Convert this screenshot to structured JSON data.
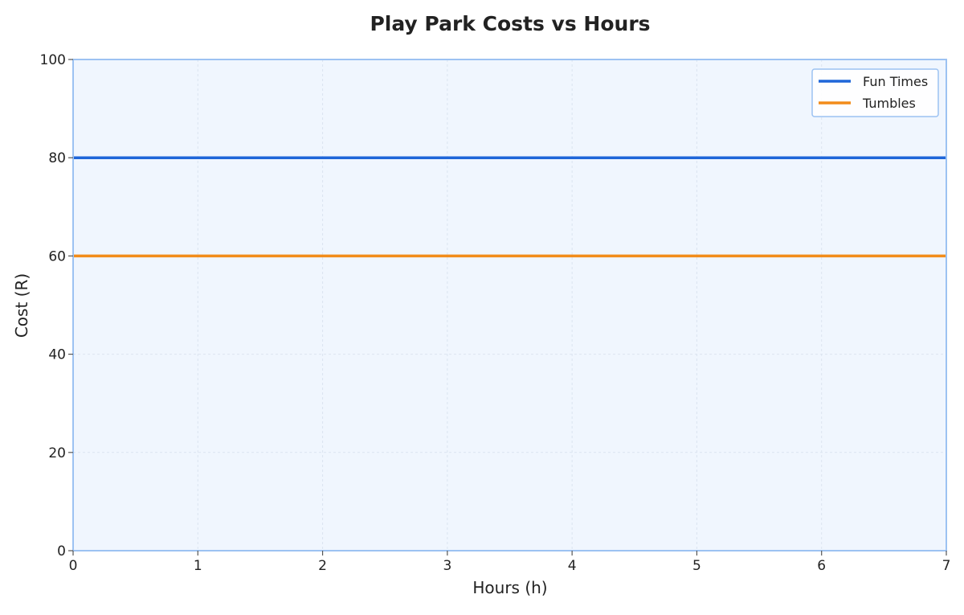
{
  "chart_data": {
    "type": "line",
    "title": "Play Park Costs vs Hours",
    "xlabel": "Hours (h)",
    "ylabel": "Cost (R)",
    "xlim": [
      0,
      7
    ],
    "ylim": [
      0,
      100
    ],
    "x_ticks": [
      0,
      1,
      2,
      3,
      4,
      5,
      6,
      7
    ],
    "y_ticks": [
      0,
      20,
      40,
      60,
      80,
      100
    ],
    "grid": true,
    "legend_position": "top-right",
    "series": [
      {
        "name": "Fun Times",
        "x": [
          0,
          7
        ],
        "y": [
          80,
          80
        ],
        "color": "#1f66d9"
      },
      {
        "name": "Tumbles",
        "x": [
          0,
          7
        ],
        "y": [
          60,
          60
        ],
        "color": "#f28c1a"
      }
    ]
  },
  "colors": {
    "plot_background": "#f0f6fe",
    "plot_border": "#9cc2f2",
    "grid": "#dbe4f0"
  }
}
